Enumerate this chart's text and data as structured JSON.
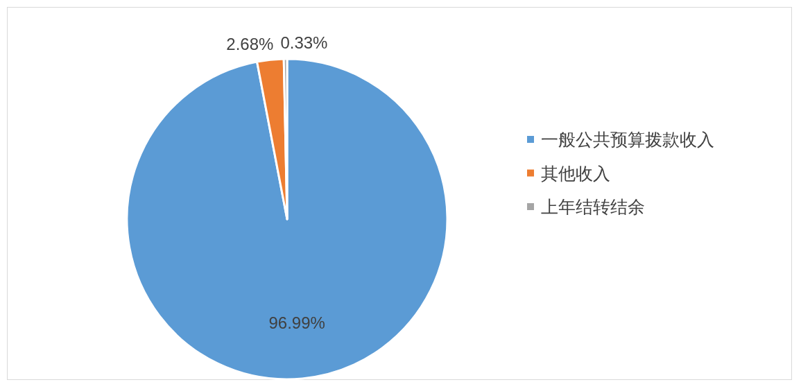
{
  "chart_data": {
    "type": "pie",
    "categories": [
      "一般公共预算拨款收入",
      "其他收入",
      "上年结转结余"
    ],
    "values": [
      96.99,
      2.68,
      0.33
    ],
    "colors": [
      "#5b9bd5",
      "#ed7d31",
      "#a5a5a5"
    ],
    "value_labels": [
      "96.99%",
      "2.68%",
      "0.33%"
    ],
    "legend": "right"
  }
}
